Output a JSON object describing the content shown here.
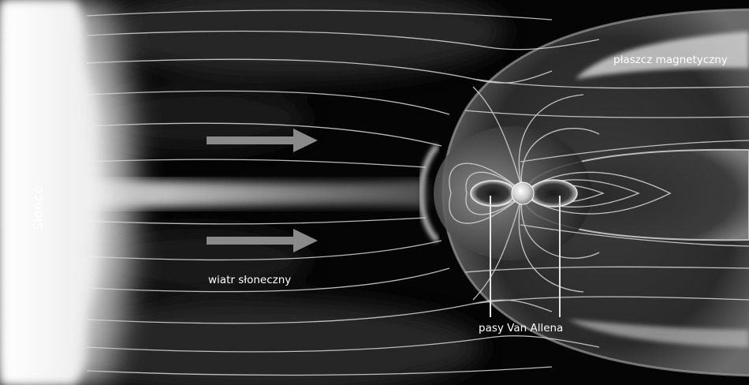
{
  "diagram": {
    "labels": {
      "sun": "Słońce",
      "solar_wind": "wiatr słoneczny",
      "magnetosheath": "płaszcz magnetyczny",
      "van_allen_belts": "pasy Van Allena"
    },
    "colors": {
      "background": "#050505",
      "sun": "#f2f2f2",
      "field_lines": "#d9d9d9",
      "arrows": "#8a8a8a",
      "text": "#ffffff"
    },
    "icons": [
      "sun-glow",
      "earth-globe",
      "solar-wind-arrow"
    ]
  }
}
